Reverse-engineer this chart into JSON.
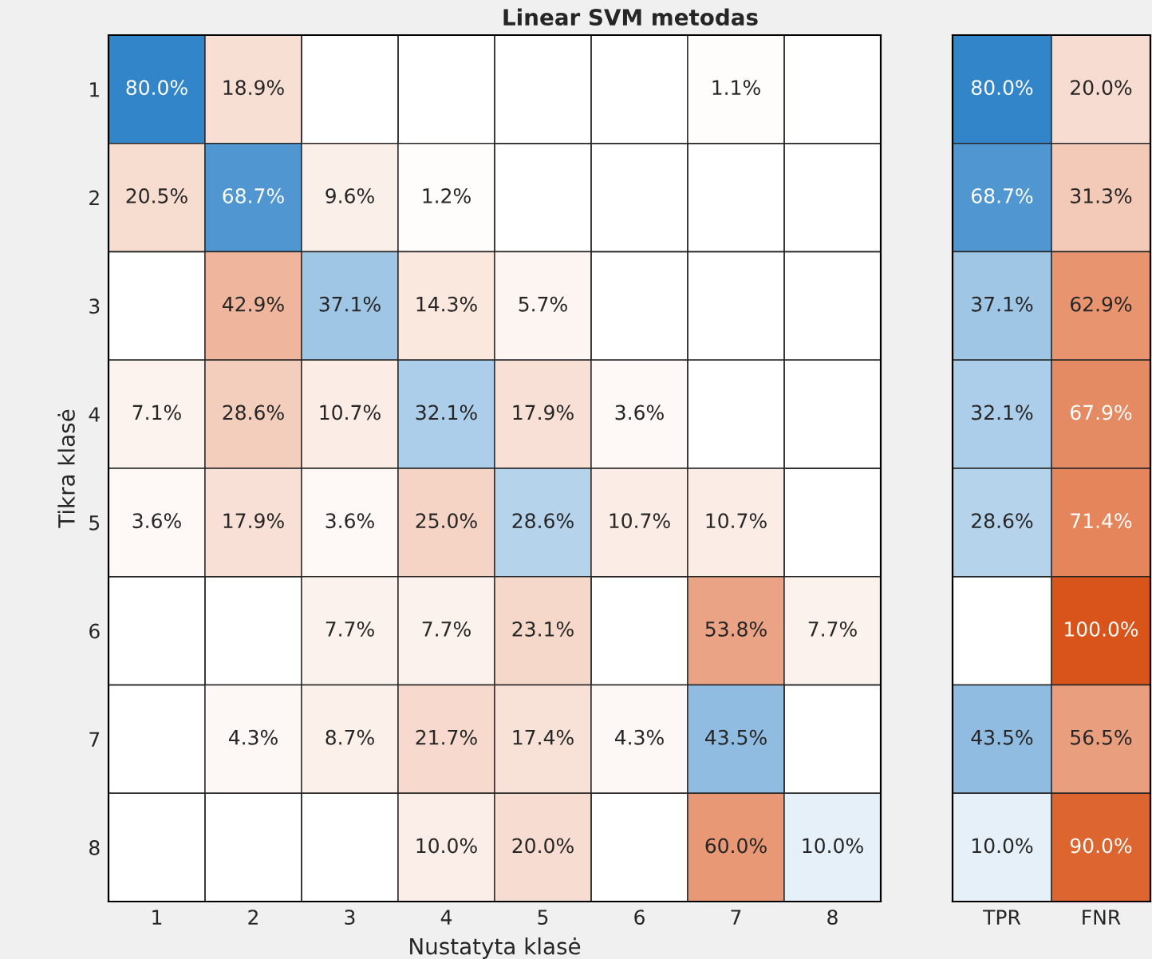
{
  "chart_data": [
    {
      "type": "heatmap",
      "title": "Linear SVM metodas",
      "xlabel": "Nustatyta klasė",
      "ylabel": "Tikra klasė",
      "categories": [
        "1",
        "2",
        "3",
        "4",
        "5",
        "6",
        "7",
        "8"
      ],
      "y_categories": [
        "1",
        "2",
        "3",
        "4",
        "5",
        "6",
        "7",
        "8"
      ],
      "cells": [
        [
          80.0,
          18.9,
          null,
          null,
          null,
          null,
          1.1,
          null
        ],
        [
          20.5,
          68.7,
          9.6,
          1.2,
          null,
          null,
          null,
          null
        ],
        [
          null,
          42.9,
          37.1,
          14.3,
          5.7,
          null,
          null,
          null
        ],
        [
          7.1,
          28.6,
          10.7,
          32.1,
          17.9,
          3.6,
          null,
          null
        ],
        [
          3.6,
          17.9,
          3.6,
          25.0,
          28.6,
          10.7,
          10.7,
          null
        ],
        [
          null,
          null,
          7.7,
          7.7,
          23.1,
          null,
          53.8,
          7.7
        ],
        [
          null,
          4.3,
          8.7,
          21.7,
          17.4,
          4.3,
          43.5,
          null
        ],
        [
          null,
          null,
          null,
          10.0,
          20.0,
          null,
          60.0,
          10.0
        ]
      ],
      "cell_labels": [
        [
          "80.0%",
          "18.9%",
          null,
          null,
          null,
          null,
          "1.1%",
          null
        ],
        [
          "20.5%",
          "68.7%",
          "9.6%",
          "1.2%",
          null,
          null,
          null,
          null
        ],
        [
          null,
          "42.9%",
          "37.1%",
          "14.3%",
          "5.7%",
          null,
          null,
          null
        ],
        [
          "7.1%",
          "28.6%",
          "10.7%",
          "32.1%",
          "17.9%",
          "3.6%",
          null,
          null
        ],
        [
          "3.6%",
          "17.9%",
          "3.6%",
          "25.0%",
          "28.6%",
          "10.7%",
          "10.7%",
          null
        ],
        [
          null,
          null,
          "7.7%",
          "7.7%",
          "23.1%",
          null,
          "53.8%",
          "7.7%"
        ],
        [
          null,
          "4.3%",
          "8.7%",
          "21.7%",
          "17.4%",
          "4.3%",
          "43.5%",
          null
        ],
        [
          null,
          null,
          null,
          "10.0%",
          "20.0%",
          null,
          "60.0%",
          "10.0%"
        ]
      ]
    },
    {
      "type": "heatmap",
      "tick_labels": "x",
      "categories": [
        "TPR",
        "FNR"
      ],
      "y_categories": [
        "1",
        "2",
        "3",
        "4",
        "5",
        "6",
        "7",
        "8"
      ],
      "cells": [
        [
          80.0,
          20.0
        ],
        [
          68.7,
          31.3
        ],
        [
          37.1,
          62.9
        ],
        [
          32.1,
          67.9
        ],
        [
          28.6,
          71.4
        ],
        [
          null,
          100.0
        ],
        [
          43.5,
          56.5
        ],
        [
          10.0,
          90.0
        ]
      ],
      "cell_labels": [
        [
          "80.0%",
          "20.0%"
        ],
        [
          "68.7%",
          "31.3%"
        ],
        [
          "37.1%",
          "62.9%"
        ],
        [
          "32.1%",
          "67.9%"
        ],
        [
          "28.6%",
          "71.4%"
        ],
        [
          null,
          "100.0%"
        ],
        [
          "43.5%",
          "56.5%"
        ],
        [
          "10.0%",
          "90.0%"
        ]
      ]
    }
  ]
}
